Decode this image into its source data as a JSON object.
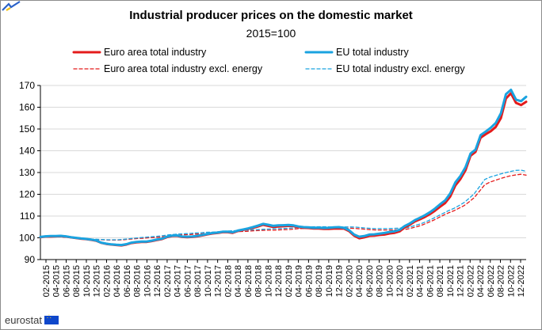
{
  "chart_data": {
    "type": "line",
    "title": "Industrial producer prices on the domestic market",
    "subtitle": "2015=100",
    "xlabel": "",
    "ylabel": "",
    "ylim": [
      90,
      170
    ],
    "yticks": [
      90,
      100,
      110,
      120,
      130,
      140,
      150,
      160,
      170
    ],
    "xticks": [
      "02-2015",
      "04-2015",
      "06-2015",
      "08-2015",
      "10-2015",
      "12-2015",
      "02-2016",
      "04-2016",
      "06-2016",
      "08-2016",
      "10-2016",
      "12-2016",
      "02-2017",
      "04-2017",
      "06-2017",
      "08-2017",
      "10-2017",
      "12-2017",
      "02-2018",
      "04-2018",
      "06-2018",
      "08-2018",
      "10-2018",
      "12-2018",
      "02-2019",
      "04-2019",
      "06-2019",
      "08-2019",
      "10-2019",
      "12-2019",
      "02-2020",
      "04-2020",
      "06-2020",
      "08-2020",
      "10-2020",
      "12-2020",
      "02-2021",
      "04-2021",
      "06-2021",
      "08-2021",
      "10-2021",
      "12-2021",
      "02-2022",
      "04-2022",
      "06-2022",
      "08-2022",
      "10-2022",
      "12-2022"
    ],
    "grid": true,
    "legend_position": "top",
    "series": [
      {
        "name": "Euro area total industry",
        "color": "#e41b1b",
        "style": "solid",
        "values": [
          100.3,
          100.6,
          100.6,
          100.7,
          100.8,
          100.6,
          100.2,
          99.9,
          99.6,
          99.4,
          99.1,
          98.7,
          97.7,
          97.2,
          96.9,
          96.7,
          96.5,
          96.9,
          97.6,
          97.9,
          98.1,
          98.1,
          98.5,
          99.0,
          99.4,
          100.3,
          100.8,
          100.9,
          100.4,
          100.3,
          100.4,
          100.7,
          101.1,
          101.6,
          102.0,
          102.2,
          102.6,
          102.6,
          102.3,
          103.1,
          103.6,
          104.1,
          104.6,
          105.2,
          106.0,
          105.5,
          105.0,
          105.2,
          105.3,
          105.5,
          105.4,
          104.9,
          104.6,
          104.5,
          104.3,
          104.3,
          104.1,
          104.1,
          104.2,
          104.3,
          104.2,
          103.1,
          101.0,
          99.8,
          100.2,
          100.9,
          101.0,
          101.3,
          101.5,
          102.0,
          102.3,
          103.0,
          104.8,
          106.0,
          107.5,
          108.5,
          109.6,
          110.9,
          112.5,
          114.3,
          116.0,
          119.0,
          124.0,
          127.0,
          131.0,
          137.7,
          139.5,
          146.0,
          147.6,
          149.0,
          151.0,
          155.0,
          164.0,
          166.4,
          162.0,
          161.0,
          162.5
        ]
      },
      {
        "name": "EU total industry",
        "color": "#1aa3e0",
        "style": "solid",
        "values": [
          100.4,
          100.7,
          100.8,
          100.8,
          100.9,
          100.7,
          100.3,
          100.0,
          99.7,
          99.5,
          99.2,
          98.8,
          97.8,
          97.3,
          97.0,
          96.8,
          96.7,
          97.1,
          97.8,
          98.1,
          98.3,
          98.3,
          98.7,
          99.2,
          99.6,
          100.5,
          101.0,
          101.1,
          100.6,
          100.5,
          100.6,
          100.9,
          101.3,
          101.8,
          102.2,
          102.4,
          102.8,
          102.8,
          102.6,
          103.3,
          103.8,
          104.3,
          104.9,
          105.6,
          106.4,
          106.0,
          105.5,
          105.7,
          105.8,
          105.9,
          105.7,
          105.2,
          104.9,
          104.8,
          104.6,
          104.7,
          104.5,
          104.6,
          104.8,
          104.9,
          104.6,
          103.5,
          101.5,
          100.5,
          100.8,
          101.5,
          101.6,
          101.9,
          102.2,
          102.7,
          103.0,
          103.7,
          105.4,
          106.6,
          108.1,
          109.2,
          110.4,
          111.8,
          113.5,
          115.4,
          117.2,
          120.4,
          125.4,
          128.4,
          132.4,
          138.7,
          140.5,
          147.2,
          148.8,
          150.6,
          152.8,
          157.2,
          166.0,
          168.0,
          163.5,
          162.8,
          164.8
        ]
      },
      {
        "name": "Euro area total industry excl. energy",
        "color": "#e41b1b",
        "style": "dashed",
        "values": [
          100.4,
          100.4,
          100.4,
          100.4,
          100.4,
          100.2,
          100.0,
          99.8,
          99.6,
          99.5,
          99.3,
          99.2,
          99.1,
          99.0,
          99.0,
          99.0,
          99.1,
          99.3,
          99.5,
          99.7,
          99.8,
          100.0,
          100.1,
          100.3,
          100.6,
          100.9,
          101.1,
          101.3,
          101.4,
          101.5,
          101.7,
          101.8,
          102.0,
          102.1,
          102.2,
          102.4,
          102.6,
          102.7,
          102.8,
          102.9,
          103.0,
          103.2,
          103.3,
          103.4,
          103.5,
          103.5,
          103.6,
          103.7,
          103.8,
          104.0,
          104.2,
          104.3,
          104.4,
          104.5,
          104.5,
          104.5,
          104.4,
          104.4,
          104.4,
          104.4,
          104.4,
          104.3,
          104.1,
          103.9,
          103.7,
          103.6,
          103.6,
          103.6,
          103.6,
          103.7,
          103.8,
          104.0,
          104.6,
          105.2,
          106.0,
          107.0,
          108.0,
          109.2,
          110.4,
          111.5,
          112.4,
          113.6,
          114.8,
          116.6,
          118.6,
          121.5,
          124.4,
          125.6,
          126.4,
          127.2,
          127.9,
          128.5,
          128.9,
          129.2,
          128.8
        ]
      },
      {
        "name": "EU total industry excl. energy",
        "color": "#1aa3e0",
        "style": "dashed",
        "values": [
          100.5,
          100.5,
          100.5,
          100.5,
          100.5,
          100.3,
          100.1,
          99.9,
          99.7,
          99.6,
          99.4,
          99.3,
          99.2,
          99.1,
          99.1,
          99.1,
          99.3,
          99.5,
          99.8,
          100.0,
          100.2,
          100.4,
          100.6,
          100.8,
          101.1,
          101.4,
          101.6,
          101.8,
          101.9,
          102.0,
          102.2,
          102.3,
          102.5,
          102.6,
          102.7,
          102.9,
          103.1,
          103.2,
          103.3,
          103.4,
          103.5,
          103.7,
          103.8,
          103.9,
          104.0,
          104.1,
          104.2,
          104.3,
          104.4,
          104.6,
          104.8,
          104.9,
          105.0,
          105.1,
          105.1,
          105.1,
          105.0,
          105.0,
          105.0,
          105.0,
          105.0,
          104.9,
          104.7,
          104.5,
          104.3,
          104.2,
          104.2,
          104.2,
          104.3,
          104.4,
          104.5,
          104.7,
          105.3,
          106.0,
          106.8,
          107.8,
          108.9,
          110.1,
          111.3,
          112.5,
          113.5,
          114.8,
          116.2,
          118.2,
          120.4,
          123.6,
          126.8,
          127.9,
          128.6,
          129.3,
          129.9,
          130.5,
          131.0,
          131.1,
          130.6
        ]
      }
    ]
  },
  "footer": {
    "source_label": "eurostat"
  },
  "colors": {
    "euro": "#e41b1b",
    "eu": "#1aa3e0",
    "grid": "#d9d9d9",
    "axis": "#000000"
  }
}
